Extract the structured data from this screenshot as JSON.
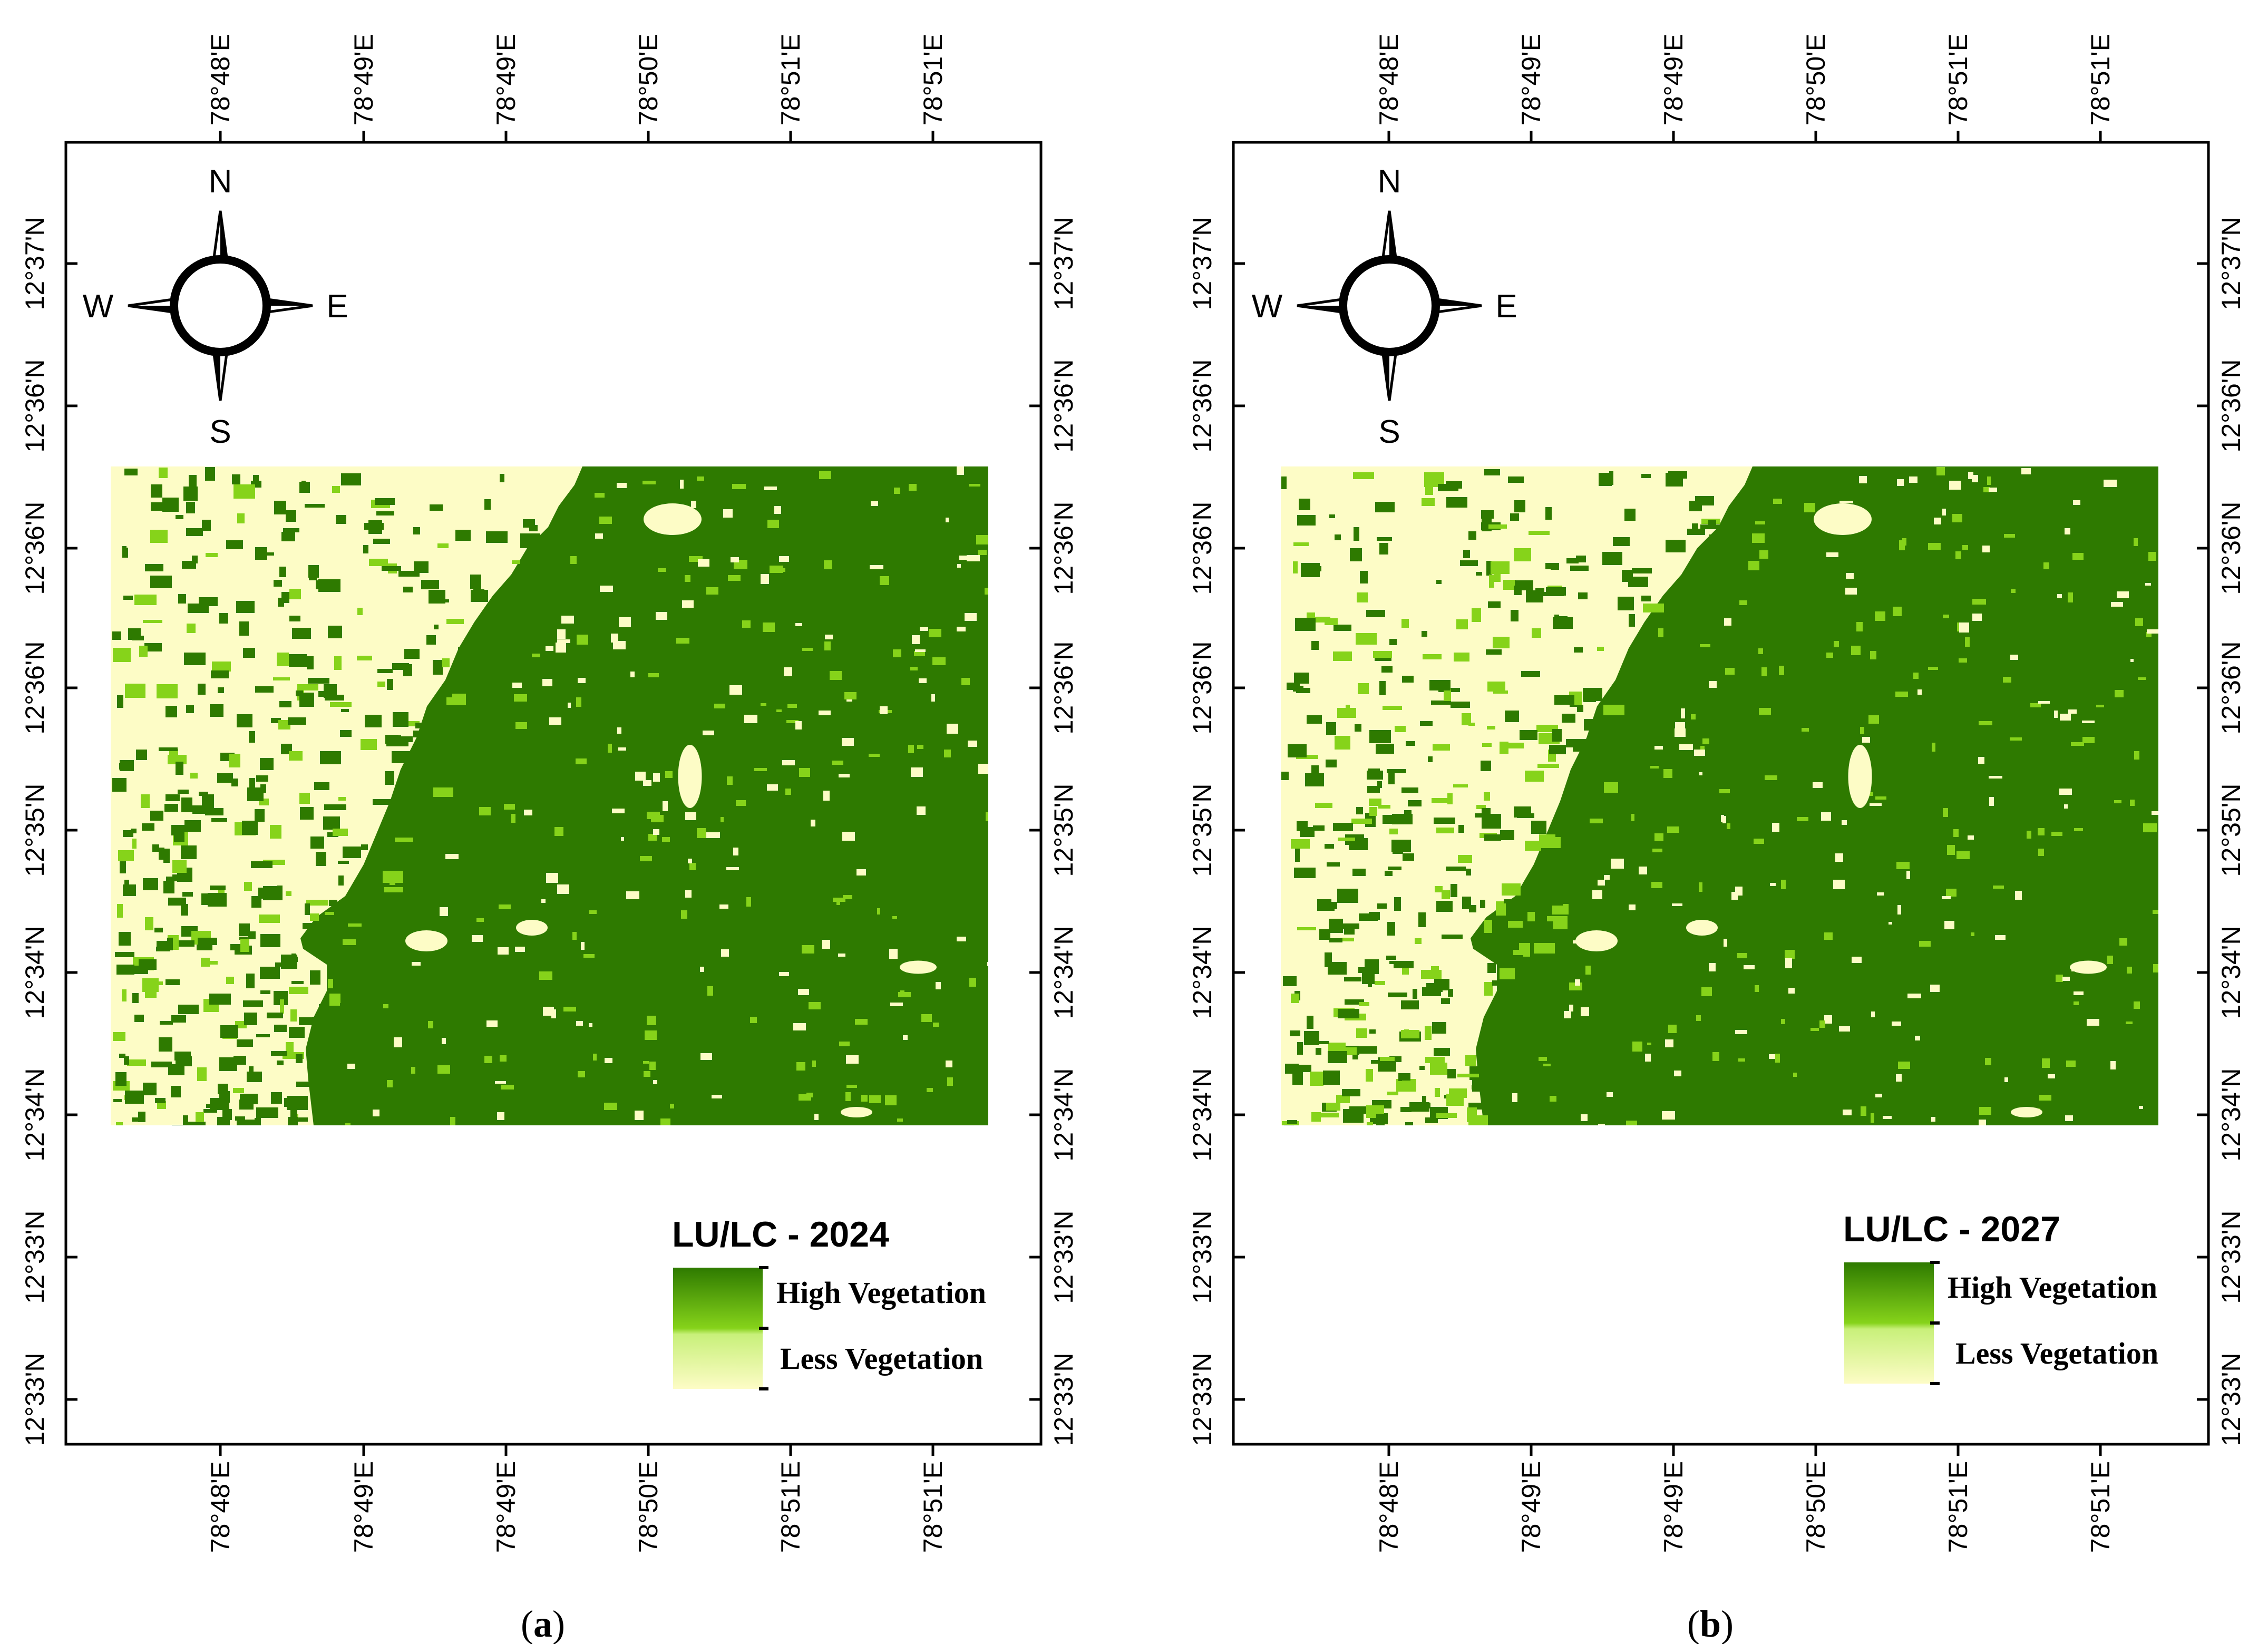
{
  "panels": [
    {
      "id": "a",
      "caption_letter": "a",
      "top_ticks": [
        "78°48'E",
        "78°49'E",
        "78°49'E",
        "78°50'E",
        "78°51'E",
        "78°51'E"
      ],
      "bottom_ticks": [
        "78°48'E",
        "78°49'E",
        "78°49'E",
        "78°50'E",
        "78°51'E",
        "78°51'E"
      ],
      "left_ticks": [
        "12°37'N",
        "12°36'N",
        "12°36'N",
        "12°36'N",
        "12°35'N",
        "12°34'N",
        "12°34'N",
        "12°33'N",
        "12°33'N"
      ],
      "right_ticks": [
        "12°37'N",
        "12°36'N",
        "12°36'N",
        "12°36'N",
        "12°35'N",
        "12°34'N",
        "12°34'N",
        "12°33'N",
        "12°33'N"
      ],
      "compass": {
        "n": "N",
        "s": "S",
        "e": "E",
        "w": "W"
      },
      "legend": {
        "title": "LU/LC - 2024",
        "items": [
          "High Vegetation",
          "Less Vegetation"
        ]
      },
      "raster_seed": 11
    },
    {
      "id": "b",
      "caption_letter": "b",
      "top_ticks": [
        "78°48'E",
        "78°49'E",
        "78°49'E",
        "78°50'E",
        "78°51'E",
        "78°51'E"
      ],
      "bottom_ticks": [
        "78°48'E",
        "78°49'E",
        "78°49'E",
        "78°50'E",
        "78°51'E",
        "78°51'E"
      ],
      "left_ticks": [
        "12°37'N",
        "12°36'N",
        "12°36'N",
        "12°36'N",
        "12°35'N",
        "12°34'N",
        "12°34'N",
        "12°33'N",
        "12°33'N"
      ],
      "right_ticks": [
        "12°37'N",
        "12°36'N",
        "12°36'N",
        "12°36'N",
        "12°35'N",
        "12°34'N",
        "12°34'N",
        "12°33'N",
        "12°33'N"
      ],
      "compass": {
        "n": "N",
        "s": "S",
        "e": "E",
        "w": "W"
      },
      "legend": {
        "title": "LU/LC - 2027",
        "items": [
          "High Vegetation",
          "Less Vegetation"
        ]
      },
      "raster_seed": 23
    }
  ],
  "colors": {
    "high_vegetation": "#2e7a00",
    "high_vegetation_light": "#86d31a",
    "less_vegetation": "#fdfcc6",
    "frame": "#000000"
  }
}
